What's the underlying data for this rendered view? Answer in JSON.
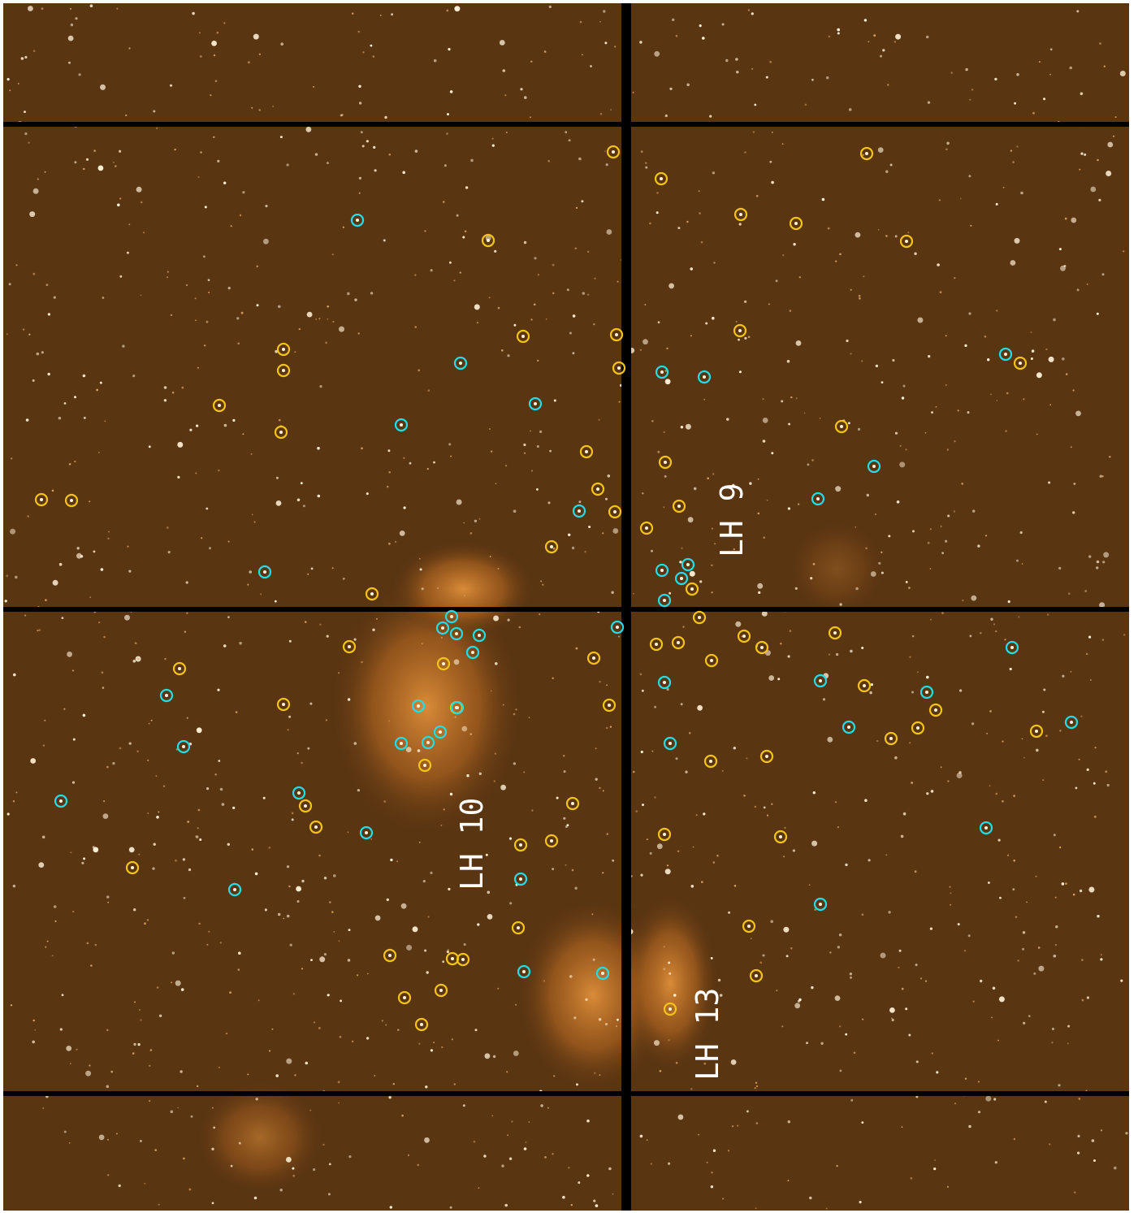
{
  "labels": [
    "LH 9",
    "LH 10",
    "LH 13"
  ]
}
